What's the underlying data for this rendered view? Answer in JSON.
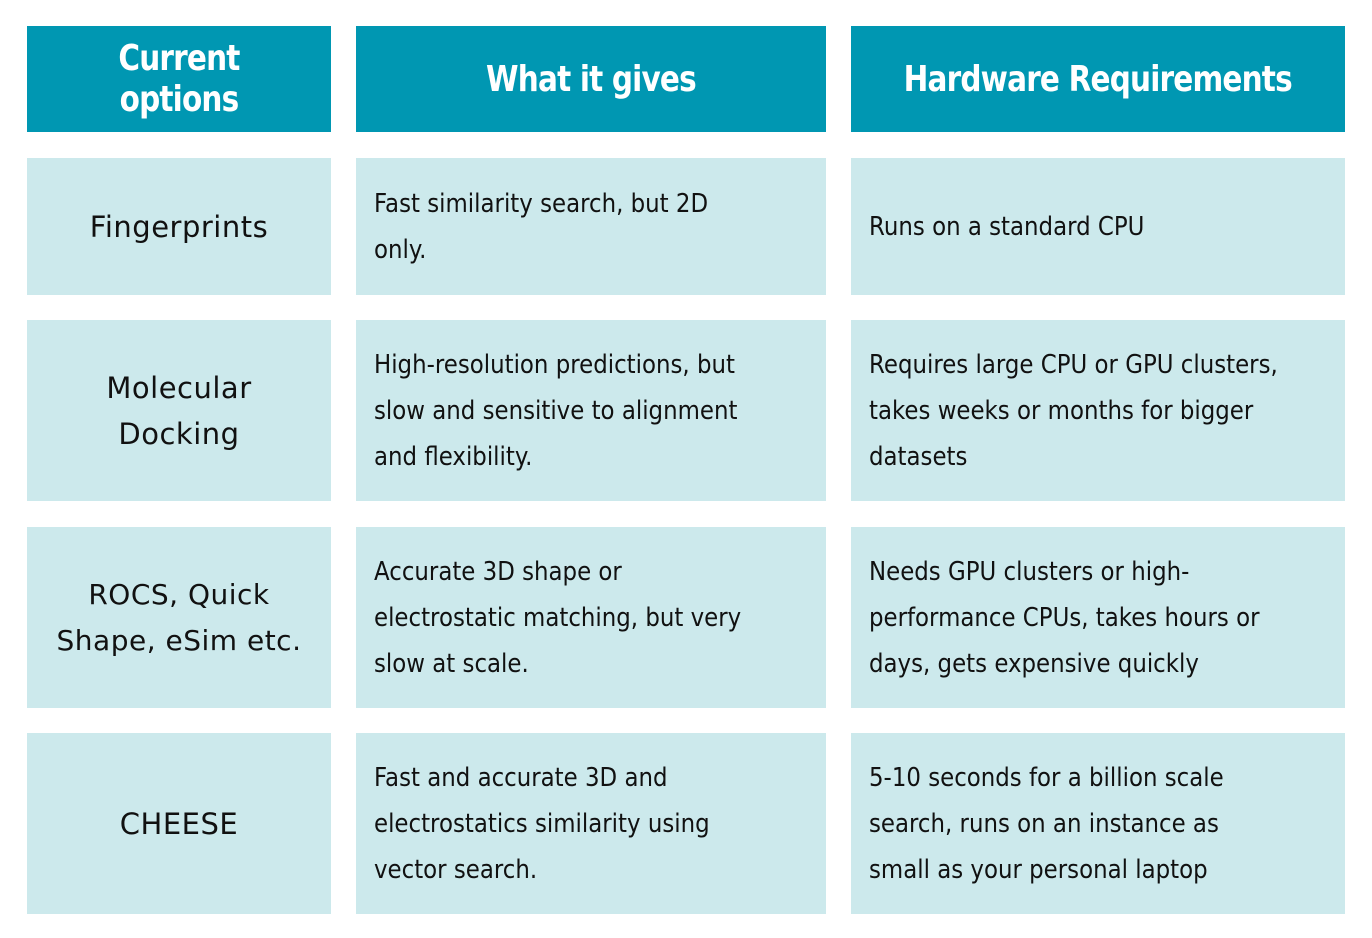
{
  "table": {
    "headers": [
      "Current options",
      "What it gives",
      "Hardware Requirements"
    ],
    "rows": [
      {
        "option": "Fingerprints",
        "gives": "Fast similarity search, but 2D only.",
        "hardware": "Runs on a standard CPU"
      },
      {
        "option": "Molecular Docking",
        "gives": "High-resolution predictions, but slow and sensitive to alignment and flexibility.",
        "hardware": "Requires large CPU or GPU clusters, takes weeks or months for bigger datasets"
      },
      {
        "option": "ROCS, Quick Shape, eSim etc.",
        "gives": "Accurate 3D shape or electrostatic matching, but very slow at scale.",
        "hardware": "Needs GPU clusters or high-performance CPUs, takes hours or days, gets expensive quickly"
      },
      {
        "option": "CHEESE",
        "gives": "Fast and accurate 3D and electrostatics similarity using vector search.",
        "hardware": "5-10 seconds for a billion scale search, runs on an instance as small as your personal laptop"
      }
    ],
    "colors": {
      "header_bg": "#0097b2",
      "header_text": "#ffffff",
      "cell_bg": "#cce9ec",
      "cell_text": "#111111"
    }
  }
}
